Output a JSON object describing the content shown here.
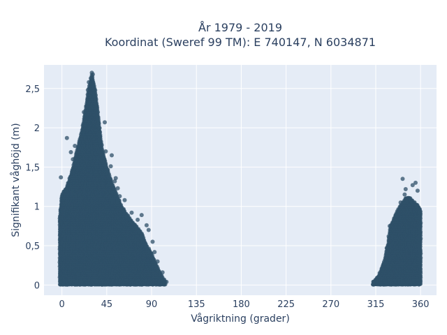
{
  "chart_data": {
    "type": "scatter",
    "title_line1": "År 1979 - 2019",
    "title_line2": "Koordinat (Sweref 99 TM): E 740147, N 6034871",
    "xlabel": "Vågriktning (grader)",
    "ylabel": "Signifikant våghöjd (m)",
    "xlim": [
      -18,
      376
    ],
    "ylim": [
      -0.13,
      2.8
    ],
    "x_ticks": [
      0,
      45,
      90,
      135,
      180,
      225,
      270,
      315,
      360
    ],
    "x_tick_labels": [
      "0",
      "45",
      "90",
      "135",
      "180",
      "225",
      "270",
      "315",
      "360"
    ],
    "y_ticks": [
      0,
      0.5,
      1,
      1.5,
      2,
      2.5
    ],
    "y_tick_labels": [
      "0",
      "0,5",
      "1",
      "1,5",
      "2",
      "2,5"
    ],
    "grid": true,
    "colors": {
      "marker": "#2f5068",
      "plot_bg": "#e5ecf6",
      "grid": "#ffffff"
    },
    "series": [
      {
        "envelope": [
          [
            -2,
            0.9
          ],
          [
            0,
            1.15
          ],
          [
            5,
            1.25
          ],
          [
            10,
            1.45
          ],
          [
            15,
            1.7
          ],
          [
            20,
            1.95
          ],
          [
            24,
            2.25
          ],
          [
            27,
            2.5
          ],
          [
            30,
            2.68
          ],
          [
            33,
            2.5
          ],
          [
            36,
            2.2
          ],
          [
            40,
            1.75
          ],
          [
            45,
            1.5
          ],
          [
            50,
            1.3
          ],
          [
            55,
            1.15
          ],
          [
            60,
            1.0
          ],
          [
            65,
            0.9
          ],
          [
            70,
            0.82
          ],
          [
            75,
            0.74
          ],
          [
            80,
            0.66
          ],
          [
            85,
            0.5
          ],
          [
            90,
            0.4
          ],
          [
            95,
            0.25
          ],
          [
            100,
            0.12
          ],
          [
            104,
            0.04
          ]
        ],
        "outliers": [
          [
            30,
            2.7
          ],
          [
            31,
            2.68
          ],
          [
            29,
            2.63
          ],
          [
            27,
            2.58
          ],
          [
            32,
            2.52
          ],
          [
            26,
            2.48
          ],
          [
            35,
            2.28
          ],
          [
            22,
            2.2
          ],
          [
            43,
            2.07
          ],
          [
            37,
            1.92
          ],
          [
            5,
            1.87
          ],
          [
            40,
            1.78
          ],
          [
            13,
            1.77
          ],
          [
            44,
            1.7
          ],
          [
            9,
            1.69
          ],
          [
            50,
            1.65
          ],
          [
            11,
            1.6
          ],
          [
            49,
            1.51
          ],
          [
            -1,
            1.37
          ],
          [
            54,
            1.36
          ],
          [
            53,
            1.32
          ],
          [
            56,
            1.23
          ],
          [
            5,
            1.22
          ],
          [
            58,
            1.13
          ],
          [
            63,
            1.08
          ],
          [
            70,
            0.92
          ],
          [
            80,
            0.89
          ],
          [
            76,
            0.83
          ],
          [
            85,
            0.76
          ],
          [
            87,
            0.7
          ],
          [
            91,
            0.55
          ],
          [
            93,
            0.42
          ],
          [
            96,
            0.3
          ],
          [
            101,
            0.16
          ],
          [
            105,
            0.04
          ]
        ]
      },
      {
        "envelope": [
          [
            312,
            0.03
          ],
          [
            318,
            0.12
          ],
          [
            324,
            0.32
          ],
          [
            328,
            0.58
          ],
          [
            330,
            0.75
          ],
          [
            334,
            0.87
          ],
          [
            338,
            0.98
          ],
          [
            342,
            1.05
          ],
          [
            346,
            1.12
          ],
          [
            350,
            1.1
          ],
          [
            354,
            1.05
          ],
          [
            358,
            1.0
          ],
          [
            360,
            0.95
          ]
        ],
        "outliers": [
          [
            313,
            0.03
          ],
          [
            318,
            0.11
          ],
          [
            323,
            0.27
          ],
          [
            326,
            0.47
          ],
          [
            328,
            0.62
          ],
          [
            329,
            0.75
          ],
          [
            335,
            0.89
          ],
          [
            340,
            1.05
          ],
          [
            344,
            1.15
          ],
          [
            345,
            1.22
          ],
          [
            342,
            1.35
          ],
          [
            352,
            1.27
          ],
          [
            355,
            1.3
          ],
          [
            357,
            1.2
          ],
          [
            350,
            1.08
          ],
          [
            356,
            1.02
          ],
          [
            359,
            0.92
          ]
        ]
      }
    ]
  }
}
